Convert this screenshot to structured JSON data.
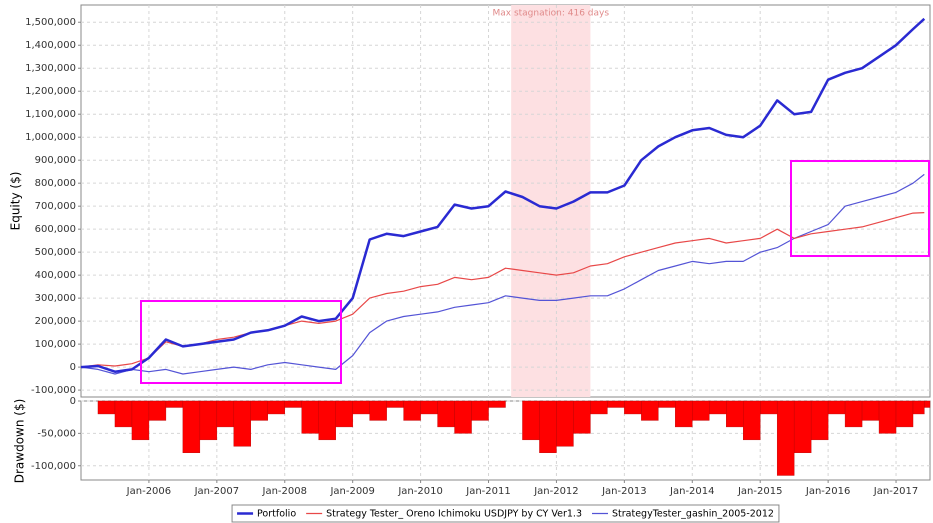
{
  "chart_data": [
    {
      "type": "line",
      "y_label": "Equity ($)",
      "x": [
        "2005-01",
        "2005-04",
        "2005-07",
        "2005-10",
        "2006-01",
        "2006-04",
        "2006-07",
        "2006-10",
        "2007-01",
        "2007-04",
        "2007-07",
        "2007-10",
        "2008-01",
        "2008-04",
        "2008-07",
        "2008-10",
        "2009-01",
        "2009-04",
        "2009-07",
        "2009-10",
        "2010-01",
        "2010-04",
        "2010-07",
        "2010-10",
        "2011-01",
        "2011-04",
        "2011-07",
        "2011-10",
        "2012-01",
        "2012-04",
        "2012-07",
        "2012-10",
        "2013-01",
        "2013-04",
        "2013-07",
        "2013-10",
        "2014-01",
        "2014-04",
        "2014-07",
        "2014-10",
        "2015-01",
        "2015-04",
        "2015-07",
        "2015-10",
        "2016-01",
        "2016-04",
        "2016-07",
        "2016-10",
        "2017-01",
        "2017-04",
        "2017-06"
      ],
      "xlim": [
        "2005-01",
        "2017-07"
      ],
      "ylim": [
        -130000,
        1575000
      ],
      "yticks": [
        {
          "value": -100000,
          "label": "-100,000"
        },
        0,
        {
          "value": 100000,
          "label": "100,000"
        },
        {
          "value": 200000,
          "label": "200,000"
        },
        {
          "value": 300000,
          "label": "300,000"
        },
        {
          "value": 400000,
          "label": "400,000"
        },
        {
          "value": 500000,
          "label": "500,000"
        },
        {
          "value": 600000,
          "label": "600,000"
        },
        {
          "value": 700000,
          "label": "700,000"
        },
        {
          "value": 800000,
          "label": "800,000"
        },
        {
          "value": 900000,
          "label": "900,000"
        },
        {
          "value": 1000000,
          "label": "1,000,000"
        },
        {
          "value": 1100000,
          "label": "1,100,000"
        },
        {
          "value": 1200000,
          "label": "1,200,000"
        },
        {
          "value": 1300000,
          "label": "1,300,000"
        },
        {
          "value": 1400000,
          "label": "1,400,000"
        },
        {
          "value": 1500000,
          "label": "1,500,000"
        }
      ],
      "grid": true,
      "legend": "bottom",
      "stagnation": {
        "label": "Max stagnation: 416 days",
        "start": "2011-05",
        "end": "2012-07",
        "color": "#fde0e2"
      },
      "series": [
        {
          "name": "Portfolio",
          "color": "#2a2ad2",
          "width": 2.5,
          "values": [
            0,
            5000,
            -20000,
            -10000,
            40000,
            120000,
            90000,
            100000,
            110000,
            120000,
            150000,
            160000,
            180000,
            220000,
            200000,
            210000,
            300000,
            555000,
            580000,
            570000,
            590000,
            610000,
            707000,
            690000,
            700000,
            764000,
            740000,
            700000,
            690000,
            720000,
            760000,
            760000,
            790000,
            900000,
            960000,
            1000000,
            1030000,
            1040000,
            1010000,
            1000000,
            1050000,
            1160000,
            1100000,
            1110000,
            1250000,
            1280000,
            1300000,
            1350000,
            1400000,
            1470000,
            1515000
          ]
        },
        {
          "name": "Strategy Tester_ Oreno Ichimoku USDJPY by CY Ver1.3",
          "color": "#e84848",
          "width": 1.2,
          "values": [
            0,
            10000,
            5000,
            15000,
            40000,
            110000,
            90000,
            100000,
            120000,
            130000,
            150000,
            160000,
            180000,
            200000,
            190000,
            200000,
            230000,
            300000,
            320000,
            330000,
            350000,
            360000,
            390000,
            380000,
            390000,
            430000,
            420000,
            410000,
            400000,
            410000,
            440000,
            450000,
            480000,
            500000,
            520000,
            540000,
            550000,
            560000,
            540000,
            550000,
            560000,
            600000,
            560000,
            580000,
            590000,
            600000,
            610000,
            630000,
            650000,
            670000,
            672000
          ]
        },
        {
          "name": "StrategyTester_gashin_2005-2012",
          "color": "#5454d6",
          "width": 1.2,
          "values": [
            0,
            -10000,
            -30000,
            -10000,
            -20000,
            -10000,
            -30000,
            -20000,
            -10000,
            0,
            -10000,
            10000,
            20000,
            10000,
            0,
            -10000,
            50000,
            150000,
            200000,
            220000,
            230000,
            240000,
            260000,
            270000,
            280000,
            310000,
            300000,
            290000,
            290000,
            300000,
            310000,
            310000,
            340000,
            380000,
            420000,
            440000,
            460000,
            450000,
            460000,
            460000,
            500000,
            520000,
            560000,
            590000,
            620000,
            700000,
            720000,
            740000,
            760000,
            800000,
            838000
          ]
        }
      ]
    },
    {
      "type": "bar",
      "y_label": "Drawdown ($)",
      "x": [
        "2005-01",
        "2005-04",
        "2005-07",
        "2005-10",
        "2006-01",
        "2006-04",
        "2006-07",
        "2006-10",
        "2007-01",
        "2007-04",
        "2007-07",
        "2007-10",
        "2008-01",
        "2008-04",
        "2008-07",
        "2008-10",
        "2009-01",
        "2009-04",
        "2009-07",
        "2009-10",
        "2010-01",
        "2010-04",
        "2010-07",
        "2010-10",
        "2011-01",
        "2011-04",
        "2011-07",
        "2011-10",
        "2012-01",
        "2012-04",
        "2012-07",
        "2012-10",
        "2013-01",
        "2013-04",
        "2013-07",
        "2013-10",
        "2014-01",
        "2014-04",
        "2014-07",
        "2014-10",
        "2015-01",
        "2015-04",
        "2015-07",
        "2015-10",
        "2016-01",
        "2016-04",
        "2016-07",
        "2016-10",
        "2017-01",
        "2017-04",
        "2017-06"
      ],
      "xlim": [
        "2005-01",
        "2017-07"
      ],
      "xticks": [
        {
          "value": "2006-01",
          "label": "Jan-2006"
        },
        {
          "value": "2007-01",
          "label": "Jan-2007"
        },
        {
          "value": "2008-01",
          "label": "Jan-2008"
        },
        {
          "value": "2009-01",
          "label": "Jan-2009"
        },
        {
          "value": "2010-01",
          "label": "Jan-2010"
        },
        {
          "value": "2011-01",
          "label": "Jan-2011"
        },
        {
          "value": "2012-01",
          "label": "Jan-2012"
        },
        {
          "value": "2013-01",
          "label": "Jan-2013"
        },
        {
          "value": "2014-01",
          "label": "Jan-2014"
        },
        {
          "value": "2015-01",
          "label": "Jan-2015"
        },
        {
          "value": "2016-01",
          "label": "Jan-2016"
        },
        {
          "value": "2017-01",
          "label": "Jan-2017"
        }
      ],
      "ylim": [
        -122000,
        0
      ],
      "yticks": [
        0,
        {
          "value": -50000,
          "label": "-50,000"
        },
        {
          "value": -100000,
          "label": "-100,000"
        }
      ],
      "grid": true,
      "color": "#ff0000",
      "values": [
        0,
        -20000,
        -40000,
        -60000,
        -30000,
        -10000,
        -80000,
        -60000,
        -40000,
        -70000,
        -30000,
        -20000,
        -10000,
        -50000,
        -60000,
        -40000,
        -20000,
        -30000,
        -10000,
        -30000,
        -20000,
        -40000,
        -50000,
        -30000,
        -10000,
        0,
        -60000,
        -80000,
        -70000,
        -50000,
        -20000,
        -10000,
        -20000,
        -30000,
        -10000,
        -40000,
        -30000,
        -20000,
        -40000,
        -60000,
        -20000,
        -115000,
        -80000,
        -60000,
        -20000,
        -40000,
        -30000,
        -50000,
        -40000,
        -20000,
        -10000
      ]
    }
  ]
}
